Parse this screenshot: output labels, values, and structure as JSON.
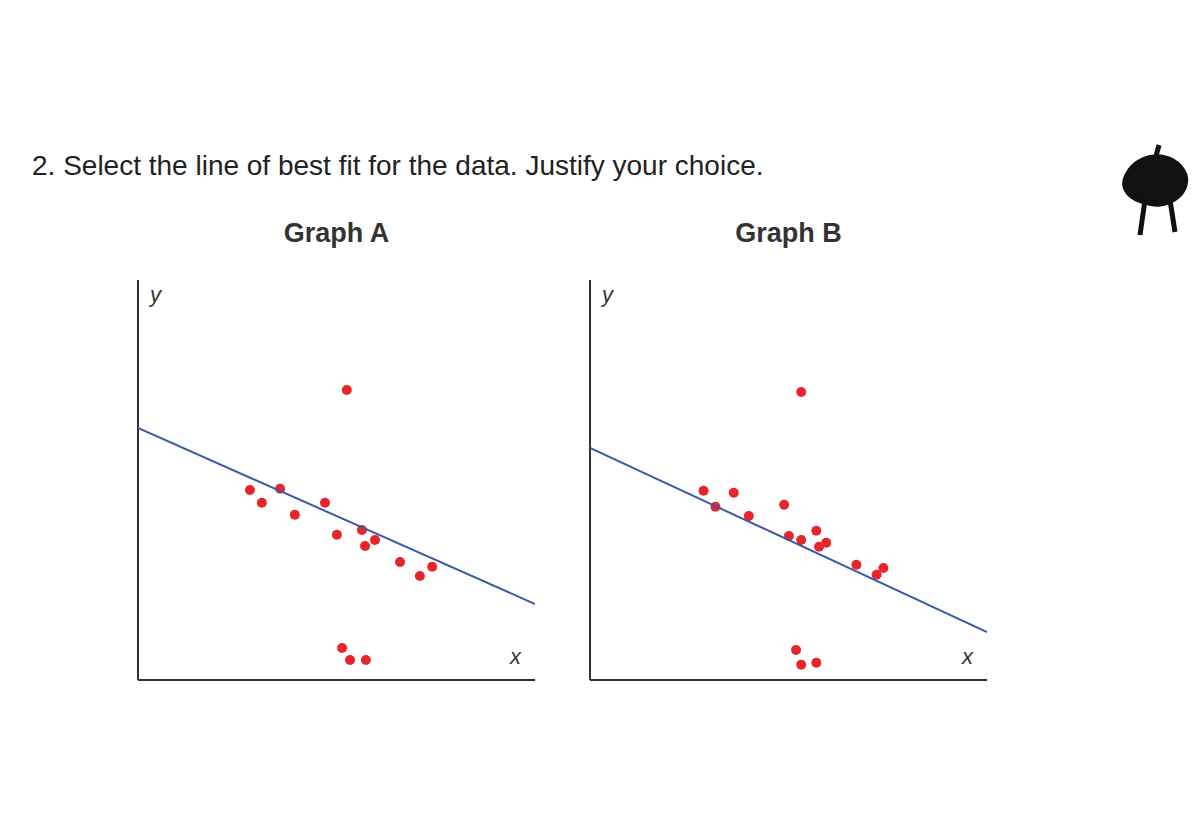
{
  "question": "2. Select the line of best fit for the data. Justify your choice.",
  "chart_data": [
    {
      "type": "scatter",
      "title": "Graph A",
      "x_label": "x",
      "y_label": "y",
      "xlim": [
        0,
        10
      ],
      "ylim": [
        0,
        10
      ],
      "xticks": [],
      "yticks": [],
      "tick_labels": false,
      "grid": false,
      "series": [
        {
          "type": "scatter",
          "color": "#e8262a",
          "marker": "circle",
          "x": [
            5.26,
            2.82,
            3.12,
            3.58,
            3.95,
            4.71,
            5.01,
            5.64,
            5.72,
            5.97,
            6.6,
            7.1,
            7.41,
            5.14,
            5.34,
            5.74
          ],
          "values": [
            7.25,
            4.75,
            4.43,
            4.78,
            4.13,
            4.43,
            3.63,
            3.75,
            3.35,
            3.5,
            2.95,
            2.6,
            2.83,
            0.8,
            0.5,
            0.5
          ]
        },
        {
          "type": "line",
          "color": "#3b5ba8",
          "line_style": "solid",
          "x": [
            0,
            10
          ],
          "values": [
            6.3,
            1.9
          ]
        }
      ]
    },
    {
      "type": "scatter",
      "title": "Graph B",
      "x_label": "x",
      "y_label": "y",
      "xlim": [
        0,
        10
      ],
      "ylim": [
        0,
        10
      ],
      "xticks": [],
      "yticks": [],
      "tick_labels": false,
      "grid": false,
      "series": [
        {
          "type": "scatter",
          "color": "#e8262a",
          "marker": "circle",
          "x": [
            5.32,
            2.86,
            3.16,
            3.62,
            4.0,
            4.89,
            5.01,
            5.32,
            5.7,
            5.77,
            5.95,
            6.71,
            7.22,
            7.39,
            5.19,
            5.32,
            5.7
          ],
          "values": [
            7.2,
            4.73,
            4.33,
            4.68,
            4.1,
            4.38,
            3.6,
            3.5,
            3.73,
            3.33,
            3.43,
            2.88,
            2.63,
            2.8,
            0.75,
            0.38,
            0.43
          ]
        },
        {
          "type": "line",
          "color": "#3b5ba8",
          "line_style": "solid",
          "x": [
            0,
            10
          ],
          "values": [
            5.8,
            1.2
          ]
        }
      ]
    }
  ]
}
